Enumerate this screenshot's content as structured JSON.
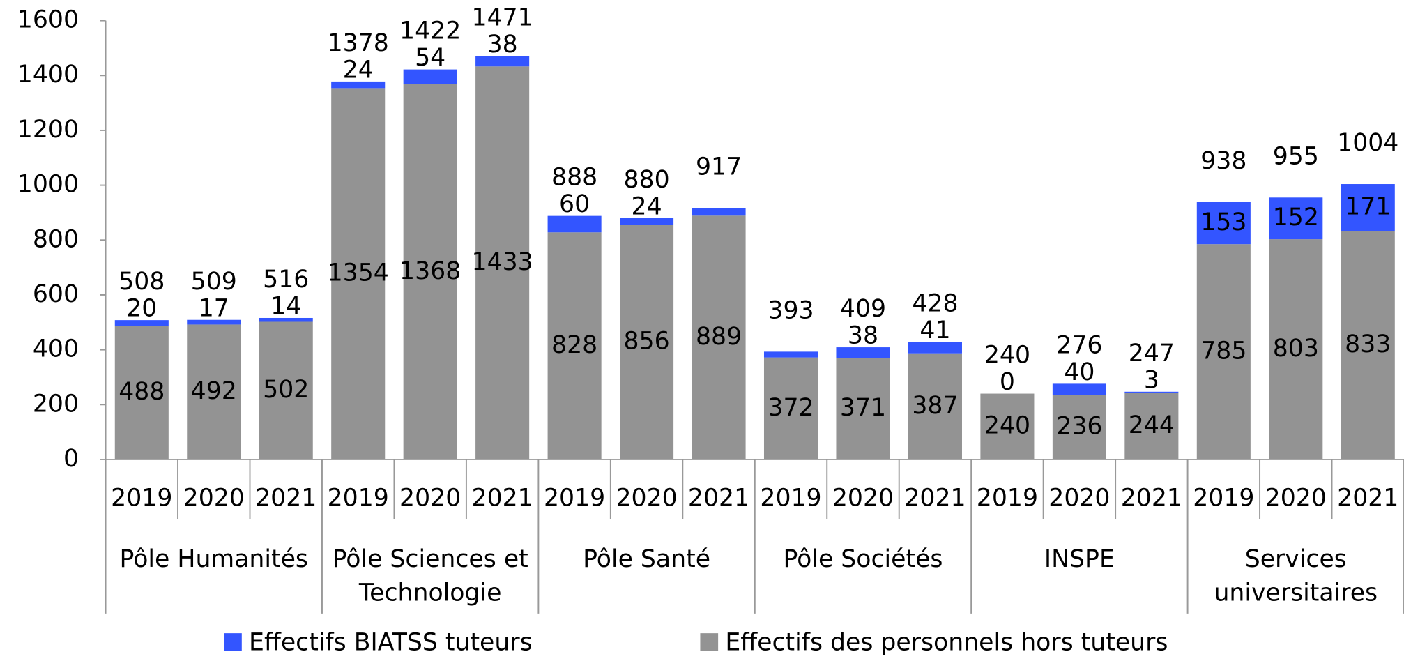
{
  "chart_data": {
    "type": "bar",
    "stacked": true,
    "categories": [
      "2019",
      "2020",
      "2021",
      "2019",
      "2020",
      "2021",
      "2019",
      "2020",
      "2021",
      "2019",
      "2020",
      "2021",
      "2019",
      "2020",
      "2021",
      "2019",
      "2020",
      "2021"
    ],
    "groups": [
      [
        "Pôle Humanités"
      ],
      [
        "Pôle Sciences et",
        "Technologie"
      ],
      [
        "Pôle Santé"
      ],
      [
        "Pôle Sociétés"
      ],
      [
        "INSPE"
      ],
      [
        "Services",
        "universitaires"
      ]
    ],
    "series": [
      {
        "name": "Effectifs BIATSS tuteurs",
        "color": "#3355ff",
        "values": [
          20,
          17,
          14,
          24,
          54,
          38,
          60,
          24,
          28,
          21,
          38,
          41,
          0,
          40,
          3,
          153,
          152,
          171
        ],
        "value_labels": [
          "20",
          "17",
          "14",
          "24",
          "54",
          "38",
          "60",
          "24",
          null,
          null,
          "38",
          "41",
          "0",
          "40",
          "3",
          "153",
          "152",
          "171"
        ]
      },
      {
        "name": "Effectifs des personnels hors tuteurs",
        "color": "#939393",
        "values": [
          488,
          492,
          502,
          1354,
          1368,
          1433,
          828,
          856,
          889,
          372,
          371,
          387,
          240,
          236,
          244,
          785,
          803,
          833
        ]
      }
    ],
    "totals": [
      508,
      509,
      516,
      1378,
      1422,
      1471,
      888,
      880,
      917,
      393,
      409,
      428,
      240,
      276,
      247,
      938,
      955,
      1004
    ],
    "ylim": [
      0,
      1600
    ],
    "yticks": [
      0,
      200,
      400,
      600,
      800,
      1000,
      1200,
      1400,
      1600
    ],
    "grid": false
  }
}
